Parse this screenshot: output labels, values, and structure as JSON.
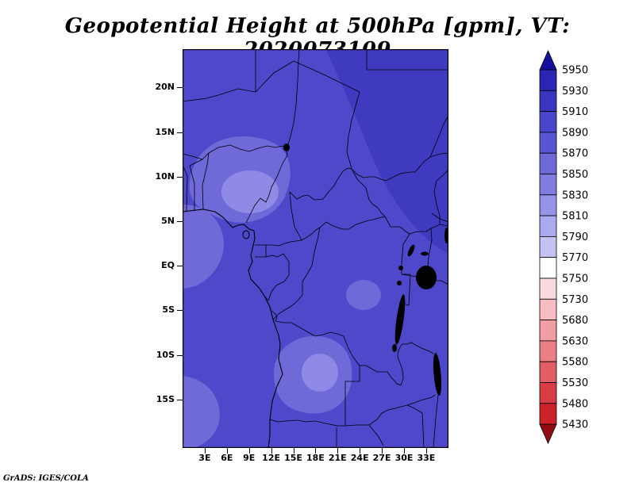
{
  "title": "Geopotential Height at 500hPa [gpm], VT: 2020073109",
  "footer": "GrADS: IGES/COLA",
  "chart_data": {
    "type": "heatmap",
    "subtype": "filled-contour-map",
    "title": "Geopotential Height at 500hPa [gpm], VT: 2020073109",
    "variable": "Geopotential Height",
    "level": "500hPa",
    "units": "gpm",
    "valid_time": "2020073109",
    "source_label": "GrADS: IGES/COLA",
    "lon_range_deg_east": [
      0,
      36
    ],
    "lat_range_deg": [
      -20.5,
      24.3
    ],
    "grid": "off",
    "legend_position": "right",
    "lat_ticks": [
      {
        "label": "20N",
        "lat": 20
      },
      {
        "label": "15N",
        "lat": 15
      },
      {
        "label": "10N",
        "lat": 10
      },
      {
        "label": "5N",
        "lat": 5
      },
      {
        "label": "EQ",
        "lat": 0
      },
      {
        "label": "5S",
        "lat": -5
      },
      {
        "label": "10S",
        "lat": -10
      },
      {
        "label": "15S",
        "lat": -15
      }
    ],
    "lon_ticks": [
      {
        "label": "3E",
        "lon": 3
      },
      {
        "label": "6E",
        "lon": 6
      },
      {
        "label": "9E",
        "lon": 9
      },
      {
        "label": "12E",
        "lon": 12
      },
      {
        "label": "15E",
        "lon": 15
      },
      {
        "label": "18E",
        "lon": 18
      },
      {
        "label": "21E",
        "lon": 21
      },
      {
        "label": "24E",
        "lon": 24
      },
      {
        "label": "27E",
        "lon": 27
      },
      {
        "label": "30E",
        "lon": 30
      },
      {
        "label": "33E",
        "lon": 33
      }
    ],
    "colorbar": {
      "orientation": "vertical",
      "boundaries": [
        5950,
        5930,
        5910,
        5890,
        5870,
        5850,
        5830,
        5810,
        5790,
        5770,
        5750,
        5730,
        5680,
        5630,
        5580,
        5530,
        5480,
        5430
      ],
      "colors": [
        "#140f9e",
        "#2a25b2",
        "#3a35bf",
        "#4a45ca",
        "#5a55d2",
        "#6e69d9",
        "#807ce0",
        "#9693e8",
        "#aba9ef",
        "#c3c2f2",
        "#ffffff",
        "#f9dade",
        "#f5bcc1",
        "#f09da3",
        "#ea7e85",
        "#e35d65",
        "#da3c45",
        "#cb2129",
        "#b5141b",
        "#8f0d12"
      ],
      "note": "colors listed top cap, 17 segments, bottom cap"
    },
    "value_range_shown_gpm": [
      5830,
      5910
    ],
    "low_centers": [
      "Nigeria / Cameroon region, about 4E-14E, 4N-12N (5830-5850 gpm)",
      "Angola / Zambia region, about 13E-22E, 8S-15S (5830-5850 gpm)"
    ],
    "high_region": "northeast (Sudan) and eastern edge (5890-5910 gpm)",
    "estimated_values": {
      "note": "gpm estimated from shading bands",
      "lon_cols": [
        0,
        6,
        12,
        18,
        24,
        30,
        36
      ],
      "lat_rows": [
        20,
        15,
        10,
        5,
        0,
        -5,
        -10,
        -15
      ],
      "grid": [
        [
          5890,
          5890,
          5895,
          5900,
          5900,
          5900,
          5900
        ],
        [
          5880,
          5885,
          5890,
          5895,
          5900,
          5900,
          5900
        ],
        [
          5865,
          5855,
          5870,
          5885,
          5895,
          5895,
          5890
        ],
        [
          5860,
          5845,
          5860,
          5880,
          5885,
          5885,
          5885
        ],
        [
          5865,
          5870,
          5875,
          5880,
          5880,
          5875,
          5880
        ],
        [
          5875,
          5880,
          5870,
          5875,
          5880,
          5880,
          5880
        ],
        [
          5880,
          5870,
          5855,
          5865,
          5880,
          5880,
          5875
        ],
        [
          5870,
          5860,
          5850,
          5860,
          5875,
          5880,
          5880
        ]
      ]
    },
    "map_fill": {
      "base": "#4f48cb",
      "dark": "#403ac0",
      "light1": "#6f6ad8",
      "light2": "#8e8ae5",
      "border": "#000000",
      "lake": "#000000",
      "frame": "#000000"
    }
  }
}
